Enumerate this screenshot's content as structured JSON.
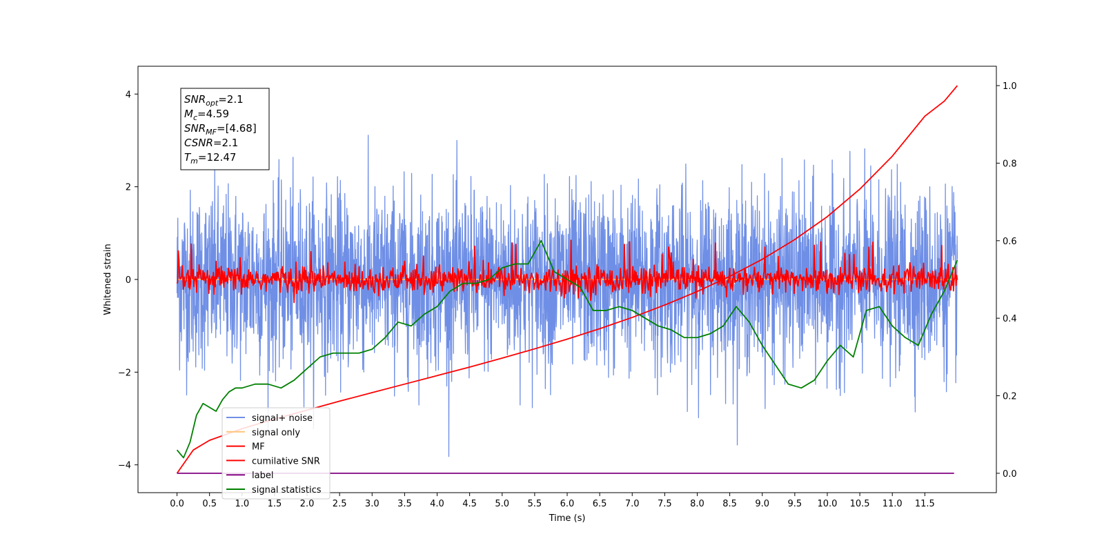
{
  "chart_data": {
    "type": "line",
    "xlabel": "Time (s)",
    "ylabel": "Whitened strain",
    "xlim": [
      -0.6,
      12.6
    ],
    "ylim": [
      -4.6,
      4.6
    ],
    "ylim_right": [
      -0.05,
      1.05
    ],
    "x_ticks": [
      0.0,
      0.5,
      1.0,
      1.5,
      2.0,
      2.5,
      3.0,
      3.5,
      4.0,
      4.5,
      5.0,
      5.5,
      6.0,
      6.5,
      7.0,
      7.5,
      8.0,
      8.5,
      9.0,
      9.5,
      10.0,
      10.5,
      11.0,
      11.5
    ],
    "x_tick_labels": [
      "0.0",
      "0.5",
      "1.0",
      "1.5",
      "2.0",
      "2.5",
      "3.0",
      "3.5",
      "4.0",
      "4.5",
      "5.0",
      "5.5",
      "6.0",
      "6.5",
      "7.0",
      "7.5",
      "8.0",
      "8.5",
      "9.0",
      "9.5",
      "10.0",
      "10.5",
      "11.0",
      "11.5"
    ],
    "y_ticks_left": [
      -4,
      -2,
      0,
      2,
      4
    ],
    "y_tick_labels_left": [
      "−4",
      "−2",
      "0",
      "2",
      "4"
    ],
    "y_ticks_right": [
      0.0,
      0.2,
      0.4,
      0.6,
      0.8,
      1.0
    ],
    "y_tick_labels_right": [
      "0.0",
      "0.2",
      "0.4",
      "0.6",
      "0.8",
      "1.0"
    ],
    "grid": false,
    "legend_position": "lower-left",
    "series": [
      {
        "name": "signal+ noise",
        "axis": "left",
        "color": "#6f8fe6",
        "description_values": {
          "x_range": [
            0.0,
            12.0
          ],
          "typical_range": [
            -1.6,
            1.6
          ],
          "max": 4.15,
          "min": -4.05
        }
      },
      {
        "name": "signal only",
        "axis": "left",
        "color": "#ffc57a",
        "x": [
          0.0,
          12.0
        ],
        "y": [
          0.0,
          0.0
        ]
      },
      {
        "name": "MF",
        "axis": "left",
        "color": "#ff0000",
        "description_values": {
          "x_range": [
            0.0,
            12.0
          ],
          "typical_range": [
            -0.3,
            0.3
          ],
          "max": 0.9,
          "min": -0.35
        }
      },
      {
        "name": "cumilative SNR",
        "axis": "right",
        "color": "#ff0000",
        "x": [
          0.0,
          0.25,
          0.5,
          1.0,
          1.5,
          2.0,
          2.5,
          3.0,
          3.5,
          4.0,
          4.5,
          5.0,
          5.5,
          6.0,
          6.5,
          7.0,
          7.5,
          8.0,
          8.5,
          9.0,
          9.5,
          10.0,
          10.5,
          11.0,
          11.5,
          11.8,
          12.0
        ],
        "y": [
          0.0,
          0.06,
          0.085,
          0.115,
          0.14,
          0.163,
          0.186,
          0.208,
          0.23,
          0.252,
          0.274,
          0.297,
          0.321,
          0.346,
          0.373,
          0.402,
          0.434,
          0.469,
          0.508,
          0.552,
          0.603,
          0.662,
          0.733,
          0.818,
          0.921,
          0.96,
          1.0
        ]
      },
      {
        "name": "label",
        "axis": "right",
        "color": "#800080",
        "x": [
          0.0,
          11.95
        ],
        "y": [
          0.0,
          0.0
        ]
      },
      {
        "name": "signal statistics",
        "axis": "right",
        "color": "#008000",
        "x": [
          0.0,
          0.1,
          0.2,
          0.3,
          0.4,
          0.5,
          0.6,
          0.7,
          0.8,
          0.9,
          1.0,
          1.2,
          1.4,
          1.6,
          1.8,
          2.0,
          2.2,
          2.4,
          2.6,
          2.8,
          3.0,
          3.2,
          3.4,
          3.6,
          3.8,
          4.0,
          4.2,
          4.4,
          4.6,
          4.8,
          5.0,
          5.2,
          5.4,
          5.6,
          5.8,
          6.0,
          6.2,
          6.4,
          6.6,
          6.8,
          7.0,
          7.2,
          7.4,
          7.6,
          7.8,
          8.0,
          8.2,
          8.4,
          8.6,
          8.8,
          9.0,
          9.2,
          9.4,
          9.6,
          9.8,
          10.0,
          10.2,
          10.4,
          10.6,
          10.8,
          11.0,
          11.2,
          11.4,
          11.6,
          11.8,
          12.0
        ],
        "y": [
          0.06,
          0.04,
          0.08,
          0.15,
          0.18,
          0.17,
          0.16,
          0.19,
          0.21,
          0.22,
          0.22,
          0.23,
          0.23,
          0.22,
          0.24,
          0.27,
          0.3,
          0.31,
          0.31,
          0.31,
          0.32,
          0.35,
          0.39,
          0.38,
          0.41,
          0.43,
          0.47,
          0.49,
          0.49,
          0.5,
          0.53,
          0.54,
          0.54,
          0.6,
          0.52,
          0.5,
          0.48,
          0.42,
          0.42,
          0.43,
          0.42,
          0.4,
          0.38,
          0.37,
          0.35,
          0.35,
          0.36,
          0.38,
          0.43,
          0.39,
          0.33,
          0.28,
          0.23,
          0.22,
          0.24,
          0.29,
          0.33,
          0.3,
          0.42,
          0.43,
          0.38,
          0.35,
          0.33,
          0.41,
          0.47,
          0.55
        ]
      }
    ],
    "annotation_lines": [
      {
        "label": "SNR",
        "sub": "opt",
        "value": "=2.1"
      },
      {
        "label": "M",
        "sub": "c",
        "value": "=4.59"
      },
      {
        "label": "SNR",
        "sub": "MF",
        "value": "=[4.68]"
      },
      {
        "label": "CSNR",
        "sub": "",
        "value": "=2.1"
      },
      {
        "label": "T",
        "sub": "m",
        "value": "=12.47"
      }
    ]
  }
}
